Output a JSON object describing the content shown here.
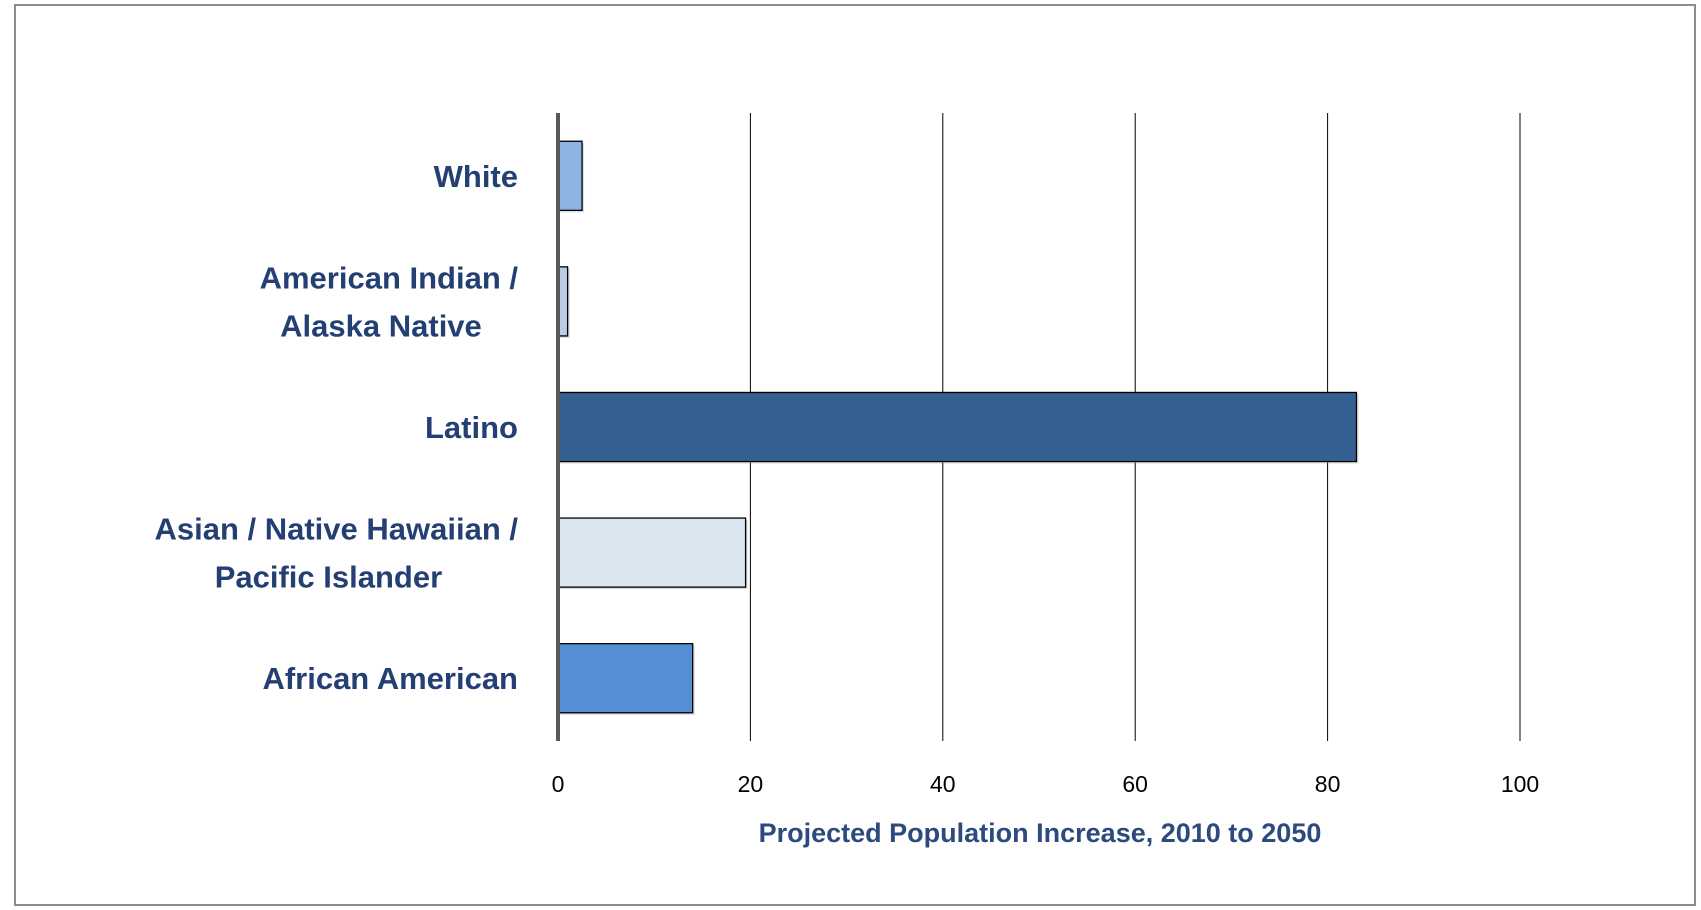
{
  "chart_data": {
    "type": "bar",
    "orientation": "horizontal",
    "categories": [
      [
        "White"
      ],
      [
        "American Indian  /",
        "Alaska Native"
      ],
      [
        "Latino"
      ],
      [
        "Asian / Native Hawaiian  /",
        "Pacific Islander"
      ],
      [
        "African American"
      ]
    ],
    "values": [
      2.5,
      1,
      83,
      19.5,
      14
    ],
    "colors": [
      "#8db4e2",
      "#b8cce4",
      "#376092",
      "#dce6f1",
      "#558ed5"
    ],
    "xlabel": "Projected Population Increase, 2010 to 2050",
    "ylabel": "",
    "xlim": [
      0,
      100
    ],
    "xticks": [
      0,
      20,
      40,
      60,
      80,
      100
    ],
    "grid": "vertical",
    "legend": "none"
  }
}
